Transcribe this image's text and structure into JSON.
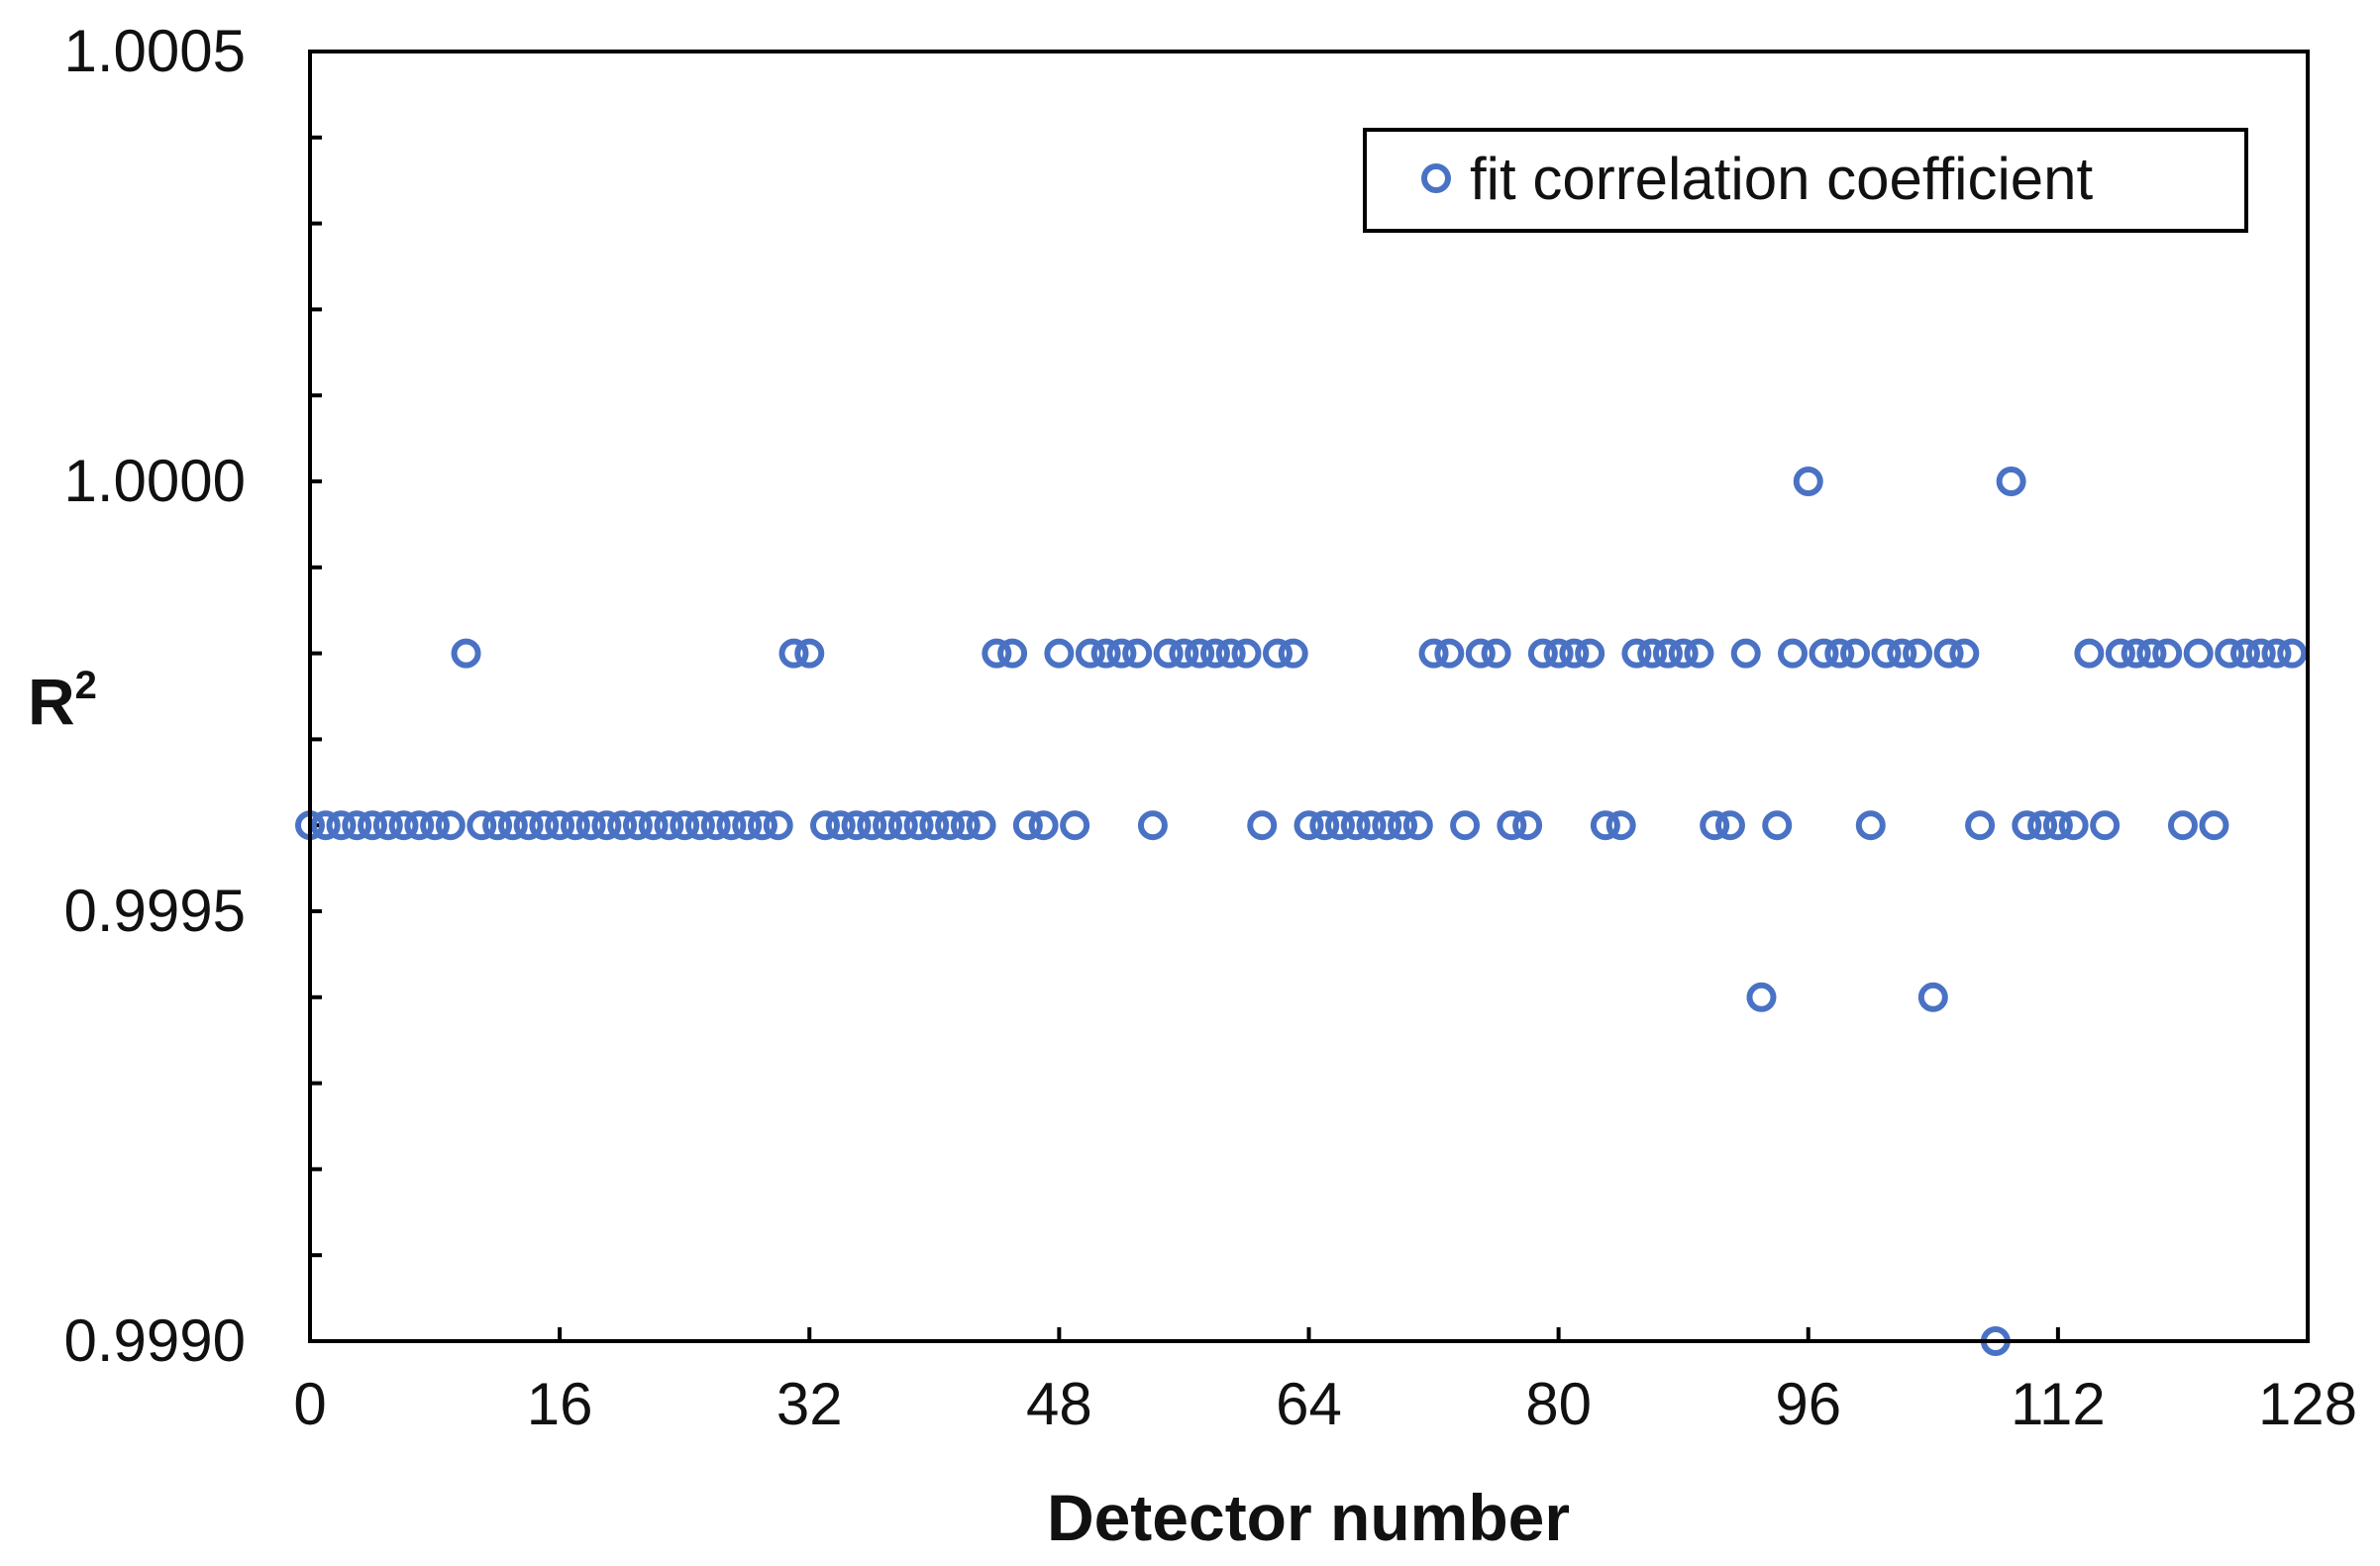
{
  "chart_data": {
    "type": "scatter",
    "title": "",
    "xlabel": "Detector number",
    "ylabel": "R",
    "ylabel_superscript": "2",
    "xlim": [
      0,
      128
    ],
    "ylim": [
      0.999,
      1.0005
    ],
    "x_ticks": [
      "0",
      "16",
      "32",
      "48",
      "64",
      "80",
      "96",
      "112",
      "128"
    ],
    "y_ticks": [
      "0.9990",
      "0.9995",
      "1.0000",
      "1.0005"
    ],
    "legend": {
      "position": "top-right",
      "entries": [
        "fit correlation coefficient"
      ]
    },
    "marker_color": "#4a72c4",
    "series": [
      {
        "name": "fit correlation coefficient",
        "x": [
          0,
          1,
          2,
          3,
          4,
          5,
          6,
          7,
          8,
          9,
          10,
          11,
          12,
          13,
          14,
          15,
          16,
          17,
          18,
          19,
          20,
          21,
          22,
          23,
          24,
          25,
          26,
          27,
          28,
          29,
          30,
          31,
          32,
          33,
          34,
          35,
          36,
          37,
          38,
          39,
          40,
          41,
          42,
          43,
          44,
          45,
          46,
          47,
          48,
          49,
          50,
          51,
          52,
          53,
          54,
          55,
          56,
          57,
          58,
          59,
          60,
          61,
          62,
          63,
          64,
          65,
          66,
          67,
          68,
          69,
          70,
          71,
          72,
          73,
          74,
          75,
          76,
          77,
          78,
          79,
          80,
          81,
          82,
          83,
          84,
          85,
          86,
          87,
          88,
          89,
          90,
          91,
          92,
          93,
          94,
          95,
          96,
          97,
          98,
          99,
          100,
          101,
          102,
          103,
          104,
          105,
          106,
          107,
          108,
          109,
          110,
          111,
          112,
          113,
          114,
          115,
          116,
          117,
          118,
          119,
          120,
          121,
          122,
          123,
          124,
          125,
          126,
          127
        ],
        "y": [
          0.9996,
          0.9996,
          0.9996,
          0.9996,
          0.9996,
          0.9996,
          0.9996,
          0.9996,
          0.9996,
          0.9996,
          0.9998,
          0.9996,
          0.9996,
          0.9996,
          0.9996,
          0.9996,
          0.9996,
          0.9996,
          0.9996,
          0.9996,
          0.9996,
          0.9996,
          0.9996,
          0.9996,
          0.9996,
          0.9996,
          0.9996,
          0.9996,
          0.9996,
          0.9996,
          0.9996,
          0.9998,
          0.9998,
          0.9996,
          0.9996,
          0.9996,
          0.9996,
          0.9996,
          0.9996,
          0.9996,
          0.9996,
          0.9996,
          0.9996,
          0.9996,
          0.9998,
          0.9998,
          0.9996,
          0.9996,
          0.9998,
          0.9996,
          0.9998,
          0.9998,
          0.9998,
          0.9998,
          0.9996,
          0.9998,
          0.9998,
          0.9998,
          0.9998,
          0.9998,
          0.9998,
          0.9996,
          0.9998,
          0.9998,
          0.9996,
          0.9996,
          0.9996,
          0.9996,
          0.9996,
          0.9996,
          0.9996,
          0.9996,
          0.9998,
          0.9998,
          0.9996,
          0.9998,
          0.9998,
          0.9996,
          0.9996,
          0.9998,
          0.9998,
          0.9998,
          0.9998,
          0.9996,
          0.9996,
          0.9998,
          0.9998,
          0.9998,
          0.9998,
          0.9998,
          0.9996,
          0.9996,
          0.9998,
          0.9994,
          0.9996,
          0.9998,
          1.0,
          0.9998,
          0.9998,
          0.9998,
          0.9996,
          0.9998,
          0.9998,
          0.9998,
          0.9994,
          0.9998,
          0.9998,
          0.9996,
          0.999,
          1.0,
          0.9996,
          0.9996,
          0.9996,
          0.9996,
          0.9998,
          0.9996,
          0.9998,
          0.9998,
          0.9998,
          0.9998,
          0.9996,
          0.9998,
          0.9996,
          0.9998,
          0.9998,
          0.9998,
          0.9998,
          0.9998
        ]
      }
    ]
  }
}
